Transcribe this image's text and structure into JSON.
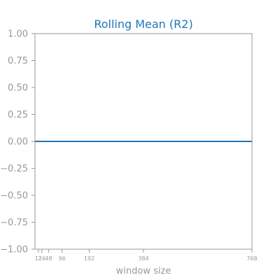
{
  "chart_data": {
    "type": "line",
    "title": "Rolling Mean (R2)",
    "xlabel": "window size",
    "ylabel": "",
    "x": [
      12,
      24,
      48,
      96,
      192,
      384,
      768
    ],
    "x_tick_labels": [
      "12",
      "24",
      "48",
      "96",
      "192",
      "384",
      "768"
    ],
    "xlim": [
      0,
      768
    ],
    "ylim": [
      -1.0,
      1.0
    ],
    "y_ticks": [
      -1.0,
      -0.75,
      -0.5,
      -0.25,
      0.0,
      0.25,
      0.5,
      0.75,
      1.0
    ],
    "y_tick_labels": [
      "−1.00",
      "−0.75",
      "−0.50",
      "−0.25",
      "0.00",
      "0.25",
      "0.50",
      "0.75",
      "1.00"
    ],
    "series": [
      {
        "values": [
          0,
          0,
          0,
          0,
          0,
          0,
          0
        ],
        "color": "#1f77b4"
      }
    ],
    "grid": false,
    "colors": {
      "title": "#1f77b4",
      "axis": "#999999",
      "line": "#1f77b4"
    }
  }
}
